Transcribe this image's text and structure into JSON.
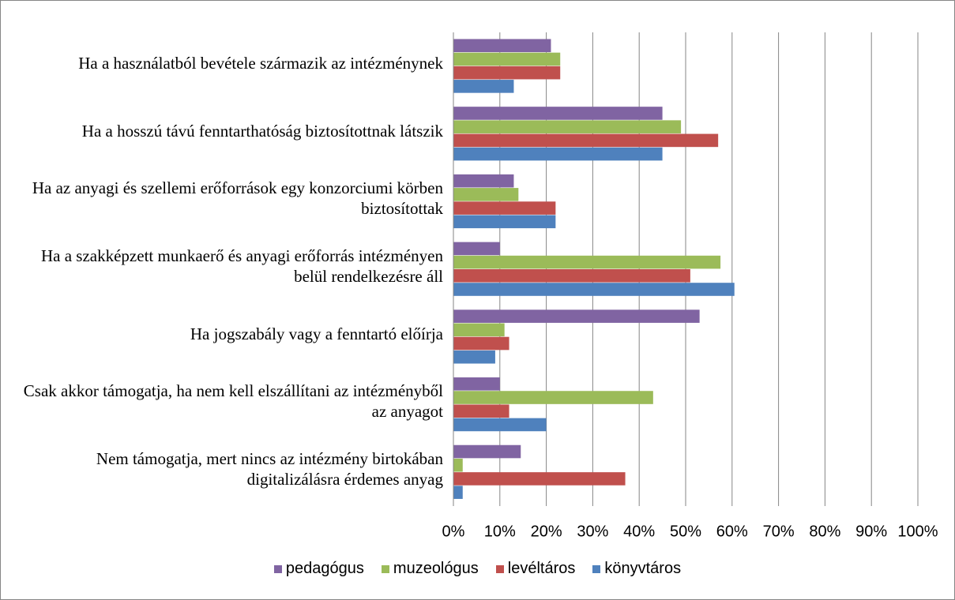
{
  "chart_data": {
    "type": "hbar",
    "categories": [
      "Ha a használatból bevétele származik az intézménynek",
      "Ha a hosszú távú fenntarthatóság biztosítottnak látszik",
      "Ha az anyagi és szellemi erőforrások egy konzorciumi körben biztosítottak",
      "Ha a szakképzett munkaerő és anyagi erőforrás intézményen belül rendelkezésre áll",
      "Ha jogszabály vagy a fenntartó előírja",
      "Csak akkor támogatja, ha nem kell elszállítani az intézményből az anyagot",
      "Nem támogatja, mert nincs az intézmény birtokában digitalizálásra érdemes anyag"
    ],
    "series": [
      {
        "name": "pedagógus",
        "color": "#8064a2",
        "values": [
          21,
          45,
          13,
          10,
          53,
          10,
          14.5
        ]
      },
      {
        "name": "muzeológus",
        "color": "#9bbb59",
        "values": [
          23,
          49,
          14,
          57.5,
          11,
          43,
          2
        ]
      },
      {
        "name": "levéltáros",
        "color": "#c0504d",
        "values": [
          23,
          57,
          22,
          51,
          12,
          12,
          37
        ]
      },
      {
        "name": "könyvtáros",
        "color": "#4f81bd",
        "values": [
          13,
          45,
          22,
          60.5,
          9,
          20,
          2
        ]
      }
    ],
    "xlim": [
      0,
      100
    ],
    "xticks": [
      {
        "value": 0,
        "label": "0%"
      },
      {
        "value": 10,
        "label": "10%"
      },
      {
        "value": 20,
        "label": "20%"
      },
      {
        "value": 30,
        "label": "30%"
      },
      {
        "value": 40,
        "label": "40%"
      },
      {
        "value": 50,
        "label": "50%"
      },
      {
        "value": 60,
        "label": "60%"
      },
      {
        "value": 70,
        "label": "70%"
      },
      {
        "value": 80,
        "label": "80%"
      },
      {
        "value": 90,
        "label": "90%"
      },
      {
        "value": 100,
        "label": "100%"
      }
    ],
    "grid": true,
    "legend": "bottom"
  }
}
